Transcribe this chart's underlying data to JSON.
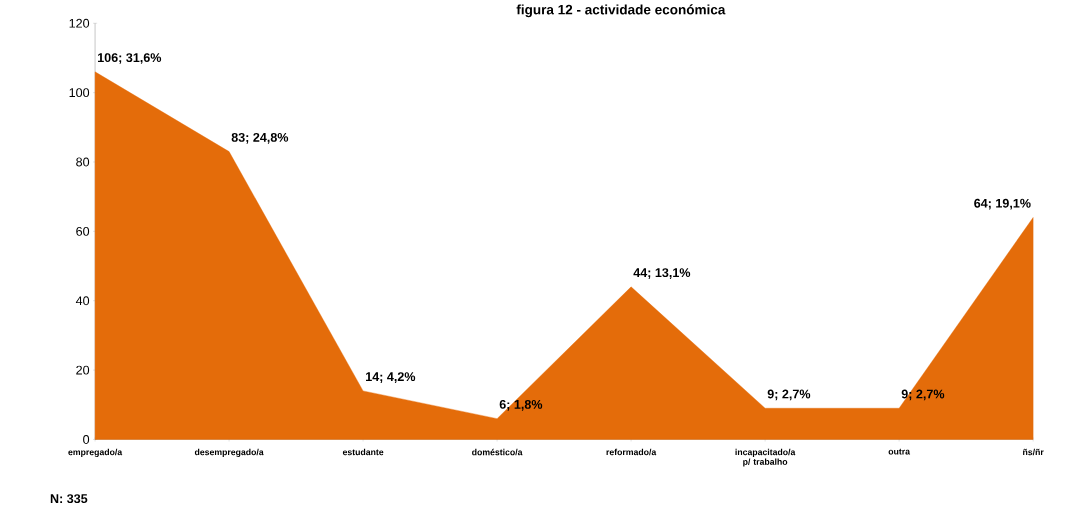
{
  "chart_data": {
    "type": "area",
    "title": "figura 12 - actividade económica",
    "categories": [
      "empregado/a",
      "desempregado/a",
      "estudante",
      "doméstico/a",
      "reformado/a",
      "incapacitado/a p/ trabalho",
      "outra",
      "ñs/ñr"
    ],
    "values": [
      106,
      83,
      14,
      6,
      44,
      9,
      9,
      64
    ],
    "value_labels": [
      "106; 31,6%",
      "83; 24,8%",
      "14; 4,2%",
      "6; 1,8%",
      "44; 13,1%",
      "9; 2,7%",
      "9; 2,7%",
      "64; 19,1%"
    ],
    "color": "#e46c0a",
    "ylim": [
      0,
      120
    ],
    "yticks": [
      0,
      20,
      40,
      60,
      80,
      100,
      120
    ],
    "grid": false,
    "annotations": [
      "N: 335"
    ]
  }
}
